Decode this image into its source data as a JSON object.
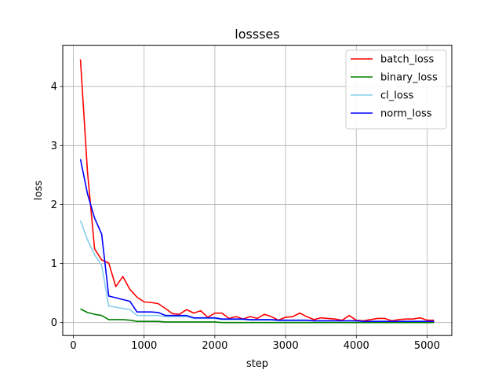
{
  "chart_data": {
    "type": "line",
    "title": "lossses",
    "xlabel": "step",
    "ylabel": "loss",
    "xlim": [
      -150,
      5350
    ],
    "ylim": [
      -0.22,
      4.7
    ],
    "xticks": [
      0,
      1000,
      2000,
      3000,
      4000,
      5000
    ],
    "yticks": [
      0,
      1,
      2,
      3,
      4
    ],
    "grid": true,
    "legend": "top-right",
    "x": [
      100,
      200,
      300,
      400,
      500,
      600,
      700,
      800,
      900,
      1000,
      1100,
      1200,
      1300,
      1400,
      1500,
      1600,
      1700,
      1800,
      1900,
      2000,
      2100,
      2200,
      2300,
      2400,
      2500,
      2600,
      2700,
      2800,
      2900,
      3000,
      3100,
      3200,
      3300,
      3400,
      3500,
      3600,
      3700,
      3800,
      3900,
      4000,
      4100,
      4200,
      4300,
      4400,
      4500,
      4600,
      4700,
      4800,
      4900,
      5000,
      5100
    ],
    "series": [
      {
        "name": "batch_loss",
        "color": "#ff0000",
        "values": [
          4.46,
          2.55,
          1.25,
          1.06,
          1.01,
          0.61,
          0.78,
          0.56,
          0.43,
          0.35,
          0.34,
          0.32,
          0.24,
          0.15,
          0.14,
          0.22,
          0.16,
          0.2,
          0.09,
          0.16,
          0.16,
          0.07,
          0.1,
          0.06,
          0.1,
          0.07,
          0.14,
          0.1,
          0.04,
          0.09,
          0.1,
          0.16,
          0.1,
          0.05,
          0.08,
          0.07,
          0.06,
          0.04,
          0.12,
          0.04,
          0.03,
          0.05,
          0.07,
          0.07,
          0.03,
          0.05,
          0.06,
          0.06,
          0.08,
          0.04,
          0.04
        ]
      },
      {
        "name": "binary_loss",
        "color": "#008000",
        "values": [
          0.23,
          0.17,
          0.14,
          0.12,
          0.05,
          0.05,
          0.05,
          0.04,
          0.02,
          0.02,
          0.02,
          0.02,
          0.01,
          0.01,
          0.01,
          0.01,
          0.01,
          0.01,
          0.01,
          0.01,
          0.0,
          0.0,
          0.0,
          0.0,
          0.0,
          0.0,
          0.0,
          0.0,
          0.0,
          0.0,
          0.0,
          0.0,
          0.0,
          0.0,
          0.0,
          0.0,
          0.0,
          0.0,
          0.0,
          0.0,
          0.0,
          0.0,
          0.0,
          0.0,
          0.0,
          0.0,
          0.0,
          0.0,
          0.0,
          0.0,
          0.0
        ]
      },
      {
        "name": "cl_loss",
        "color": "#87ceeb",
        "values": [
          1.73,
          1.4,
          1.15,
          0.97,
          0.28,
          0.26,
          0.24,
          0.22,
          0.12,
          0.12,
          0.12,
          0.12,
          0.1,
          0.1,
          0.1,
          0.1,
          0.07,
          0.07,
          0.07,
          0.07,
          0.05,
          0.05,
          0.05,
          0.05,
          0.04,
          0.04,
          0.04,
          0.04,
          0.03,
          0.03,
          0.03,
          0.03,
          0.03,
          0.03,
          0.03,
          0.03,
          0.03,
          0.03,
          0.03,
          0.03,
          0.02,
          0.02,
          0.02,
          0.02,
          0.02,
          0.02,
          0.02,
          0.02,
          0.02,
          0.02,
          0.02
        ]
      },
      {
        "name": "norm_loss",
        "color": "#0000ff",
        "values": [
          2.77,
          2.18,
          1.77,
          1.5,
          0.45,
          0.42,
          0.39,
          0.36,
          0.18,
          0.18,
          0.18,
          0.17,
          0.12,
          0.12,
          0.12,
          0.12,
          0.08,
          0.08,
          0.08,
          0.08,
          0.06,
          0.06,
          0.06,
          0.06,
          0.05,
          0.05,
          0.05,
          0.05,
          0.04,
          0.04,
          0.04,
          0.04,
          0.04,
          0.03,
          0.03,
          0.03,
          0.03,
          0.03,
          0.03,
          0.03,
          0.02,
          0.02,
          0.02,
          0.02,
          0.02,
          0.02,
          0.02,
          0.02,
          0.02,
          0.02,
          0.02
        ]
      }
    ]
  }
}
